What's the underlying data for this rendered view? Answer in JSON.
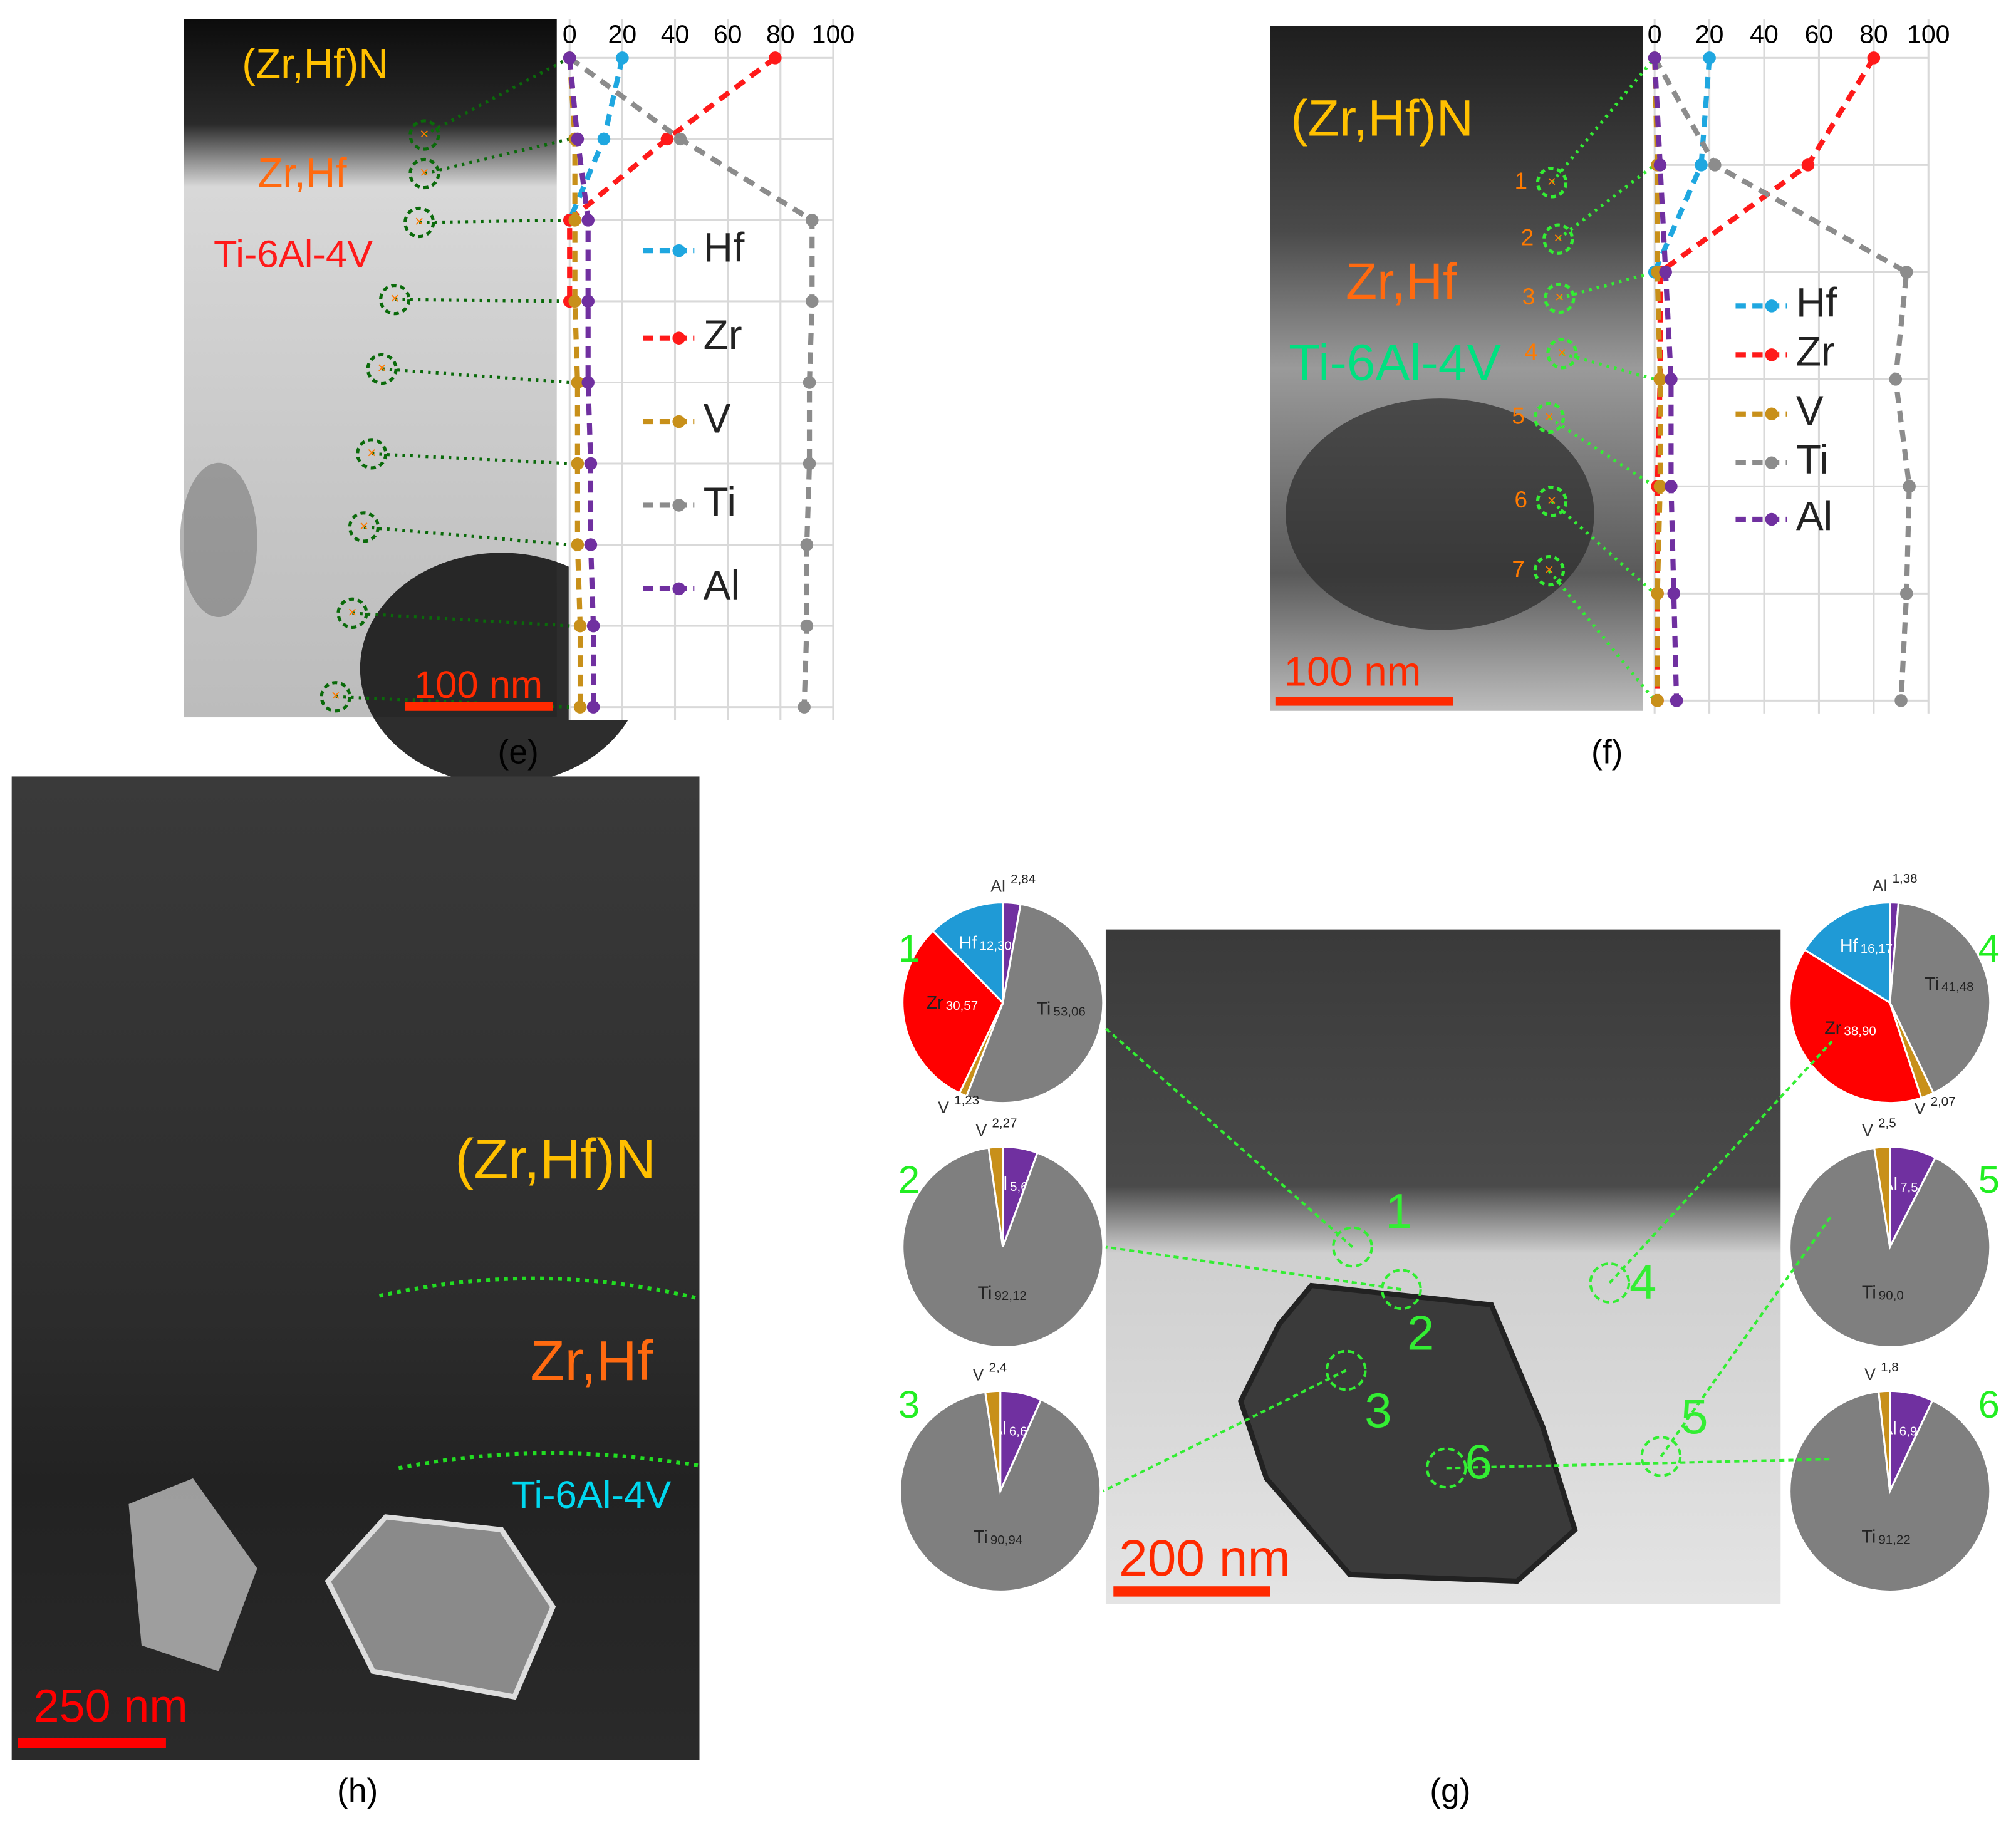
{
  "chart_data": [
    {
      "type": "line",
      "xlim": [
        0,
        100
      ],
      "xticks": [
        0,
        20,
        40,
        60,
        80,
        100
      ],
      "grid": true,
      "categories": [
        null,
        null,
        null,
        null,
        null,
        null,
        null,
        null,
        null
      ],
      "series": [
        {
          "name": "Hf",
          "color": "#1fa7e0",
          "values": [
            20,
            13,
            0,
            null,
            null,
            null,
            null,
            null,
            null
          ]
        },
        {
          "name": "Zr",
          "color": "#ff1a1a",
          "values": [
            78,
            37,
            0,
            0,
            null,
            null,
            null,
            null,
            null
          ]
        },
        {
          "name": "V",
          "color": "#c8901a",
          "values": [
            0,
            2,
            2,
            2,
            3,
            3,
            3,
            4,
            4
          ]
        },
        {
          "name": "Ti",
          "color": "#8c8c8c",
          "values": [
            0,
            42,
            92,
            92,
            91,
            91,
            90,
            90,
            89
          ]
        },
        {
          "name": "Al",
          "color": "#7030a0",
          "values": [
            0,
            3,
            7,
            7,
            7,
            8,
            8,
            9,
            9
          ]
        }
      ]
    },
    {
      "type": "line",
      "xlim": [
        0,
        100
      ],
      "xticks": [
        0,
        20,
        40,
        60,
        80,
        100
      ],
      "grid": true,
      "categories": [
        null,
        null,
        null,
        null,
        null,
        null,
        null
      ],
      "series": [
        {
          "name": "Hf",
          "color": "#1fa7e0",
          "values": [
            20,
            17,
            0,
            null,
            null,
            null,
            null
          ]
        },
        {
          "name": "Zr",
          "color": "#ff1a1a",
          "values": [
            80,
            56,
            2,
            2,
            1,
            1,
            1
          ]
        },
        {
          "name": "V",
          "color": "#c8901a",
          "values": [
            0,
            1,
            1,
            2,
            2,
            1,
            1
          ]
        },
        {
          "name": "Ti",
          "color": "#8c8c8c",
          "values": [
            0,
            22,
            92,
            88,
            93,
            92,
            90
          ]
        },
        {
          "name": "Al",
          "color": "#7030a0",
          "values": [
            0,
            2,
            4,
            6,
            6,
            7,
            8
          ]
        }
      ]
    },
    {
      "type": "pie",
      "label": "1",
      "categories": [
        "Al",
        "Ti",
        "V",
        "Zr",
        "Hf"
      ],
      "values": [
        2.84,
        53.06,
        1.23,
        30.57,
        12.3
      ],
      "value_labels": [
        "2,84",
        "53,06",
        "1,23",
        "30,57",
        "12,30"
      ],
      "colors": [
        "#7030a0",
        "#7f7f7f",
        "#c8901a",
        "#ff0000",
        "#1f9ad6"
      ]
    },
    {
      "type": "pie",
      "label": "2",
      "categories": [
        "Al",
        "Ti",
        "V"
      ],
      "values": [
        5.6,
        92.12,
        2.27
      ],
      "value_labels": [
        "5,6",
        "92,12",
        "2,27"
      ],
      "colors": [
        "#7030a0",
        "#7f7f7f",
        "#c8901a"
      ]
    },
    {
      "type": "pie",
      "label": "3",
      "categories": [
        "Al",
        "Ti",
        "V"
      ],
      "values": [
        6.66,
        90.94,
        2.4
      ],
      "value_labels": [
        "6,66",
        "90,94",
        "2,4"
      ],
      "colors": [
        "#7030a0",
        "#7f7f7f",
        "#c8901a"
      ]
    },
    {
      "type": "pie",
      "label": "4",
      "categories": [
        "Al",
        "Ti",
        "V",
        "Zr",
        "Hf"
      ],
      "values": [
        1.38,
        41.48,
        2.07,
        38.9,
        16.17
      ],
      "value_labels": [
        "1,38",
        "41,48",
        "2,07",
        "38,90",
        "16,17"
      ],
      "colors": [
        "#7030a0",
        "#7f7f7f",
        "#c8901a",
        "#ff0000",
        "#1f9ad6"
      ]
    },
    {
      "type": "pie",
      "label": "5",
      "categories": [
        "Al",
        "Ti",
        "V"
      ],
      "values": [
        7.5,
        90.0,
        2.5
      ],
      "value_labels": [
        "7,5",
        "90,0",
        "2,5"
      ],
      "colors": [
        "#7030a0",
        "#7f7f7f",
        "#c8901a"
      ]
    },
    {
      "type": "pie",
      "label": "6",
      "categories": [
        "Al",
        "Ti",
        "V"
      ],
      "values": [
        6.98,
        91.22,
        1.8
      ],
      "value_labels": [
        "6,98",
        "91,22",
        "1,8"
      ],
      "colors": [
        "#7030a0",
        "#7f7f7f",
        "#c8901a"
      ]
    }
  ],
  "panels": {
    "e": {
      "label": "(e)",
      "phases": [
        "(Zr,Hf)N",
        "Zr,Hf",
        "Ti-6Al-4V"
      ],
      "scale_bar": "100 nm"
    },
    "f": {
      "label": "(f)",
      "phases": [
        "(Zr,Hf)N",
        "Zr,Hf",
        "Ti-6Al-4V"
      ],
      "scale_bar": "100 nm",
      "points": [
        "1",
        "2",
        "3",
        "4",
        "5",
        "6",
        "7"
      ]
    },
    "h": {
      "label": "(h)",
      "phases": [
        "(Zr,Hf)N",
        "Zr,Hf",
        "Ti-6Al-4V"
      ],
      "scale_bar": "250 nm"
    },
    "g": {
      "label": "(g)",
      "scale_bar": "200 nm",
      "points": [
        "1",
        "2",
        "3",
        "4",
        "5",
        "6"
      ]
    }
  }
}
